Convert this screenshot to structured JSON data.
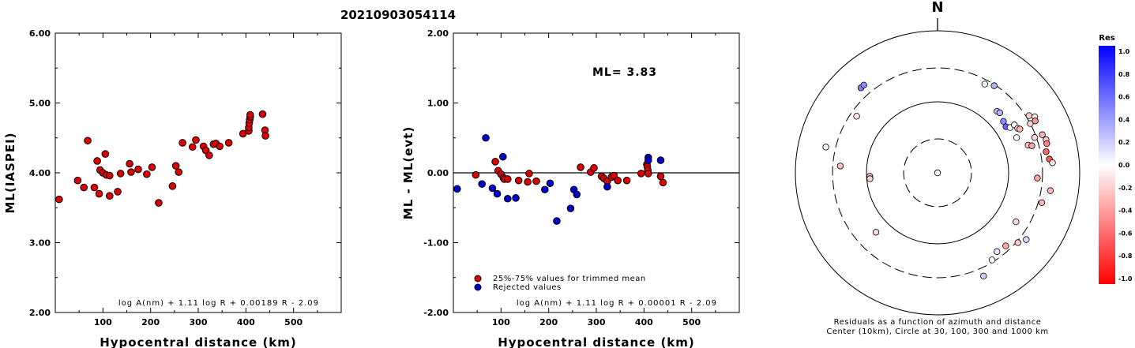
{
  "title": "20210903054114",
  "chart_data": [
    {
      "type": "scatter",
      "ylabel": "ML(IASPEI)",
      "xlabel": "Hypocentral distance (km)",
      "xlim": [
        0,
        600
      ],
      "ylim": [
        2.0,
        6.0
      ],
      "xticks": [
        "100",
        "200",
        "300",
        "400",
        "500"
      ],
      "yticks": [
        "2.00",
        "3.00",
        "4.00",
        "5.00",
        "6.00"
      ],
      "formula": "log A(nm) + 1.11 log R + 0.00189 R - 2.09",
      "points": [
        [
          8,
          3.62
        ],
        [
          47,
          3.89
        ],
        [
          60,
          3.79
        ],
        [
          68,
          4.46
        ],
        [
          82,
          3.79
        ],
        [
          88,
          4.17
        ],
        [
          92,
          3.7
        ],
        [
          94,
          4.04
        ],
        [
          100,
          4.0
        ],
        [
          105,
          4.27
        ],
        [
          107,
          3.97
        ],
        [
          114,
          3.67
        ],
        [
          114,
          3.96
        ],
        [
          131,
          3.73
        ],
        [
          137,
          3.99
        ],
        [
          156,
          4.13
        ],
        [
          159,
          4.01
        ],
        [
          174,
          4.05
        ],
        [
          192,
          3.98
        ],
        [
          203,
          4.08
        ],
        [
          217,
          3.57
        ],
        [
          246,
          3.81
        ],
        [
          253,
          4.1
        ],
        [
          259,
          4.01
        ],
        [
          267,
          4.43
        ],
        [
          288,
          4.37
        ],
        [
          295,
          4.47
        ],
        [
          311,
          4.38
        ],
        [
          316,
          4.32
        ],
        [
          323,
          4.25
        ],
        [
          332,
          4.41
        ],
        [
          337,
          4.42
        ],
        [
          345,
          4.38
        ],
        [
          364,
          4.43
        ],
        [
          394,
          4.56
        ],
        [
          406,
          4.6
        ],
        [
          406,
          4.65
        ],
        [
          407,
          4.71
        ],
        [
          408,
          4.76
        ],
        [
          409,
          4.8
        ],
        [
          409,
          4.83
        ],
        [
          435,
          4.84
        ],
        [
          440,
          4.61
        ],
        [
          441,
          4.53
        ]
      ]
    },
    {
      "type": "scatter",
      "ylabel": "ML - ML(evt)",
      "xlabel": "Hypocentral distance (km)",
      "xlim": [
        0,
        600
      ],
      "ylim": [
        -2.0,
        2.0
      ],
      "xticks": [
        "100",
        "200",
        "300",
        "400",
        "500"
      ],
      "yticks": [
        "-2.00",
        "-1.00",
        "0.00",
        "1.00",
        "2.00"
      ],
      "formula": "log A(nm) + 1.11 log R + 0.00001 R - 2.09",
      "ml_label": "ML= 3.83",
      "legend": [
        {
          "label": "25%-75% values for trimmed mean",
          "color": "#dd0000"
        },
        {
          "label": "Rejected values",
          "color": "#0000cc"
        }
      ],
      "series": [
        {
          "name": "25%-75% values for trimmed mean",
          "color": "#dd0000",
          "points": [
            [
              47,
              -0.03
            ],
            [
              88,
              0.16
            ],
            [
              94,
              0.03
            ],
            [
              100,
              -0.02
            ],
            [
              105,
              -0.07
            ],
            [
              107,
              -0.09
            ],
            [
              114,
              -0.09
            ],
            [
              137,
              -0.11
            ],
            [
              156,
              -0.13
            ],
            [
              159,
              -0.01
            ],
            [
              174,
              -0.12
            ],
            [
              267,
              0.08
            ],
            [
              288,
              0.01
            ],
            [
              295,
              0.07
            ],
            [
              311,
              -0.05
            ],
            [
              316,
              -0.08
            ],
            [
              323,
              -0.12
            ],
            [
              332,
              -0.06
            ],
            [
              337,
              -0.04
            ],
            [
              345,
              -0.11
            ],
            [
              364,
              -0.11
            ],
            [
              394,
              -0.01
            ],
            [
              406,
              0.12
            ],
            [
              407,
              0.09
            ],
            [
              408,
              0.04
            ],
            [
              409,
              -0.01
            ],
            [
              435,
              -0.05
            ],
            [
              440,
              -0.14
            ]
          ]
        },
        {
          "name": "Rejected values",
          "color": "#0000cc",
          "points": [
            [
              8,
              -0.23
            ],
            [
              60,
              -0.16
            ],
            [
              68,
              0.5
            ],
            [
              82,
              -0.22
            ],
            [
              92,
              -0.3
            ],
            [
              104,
              0.23
            ],
            [
              114,
              -0.37
            ],
            [
              131,
              -0.36
            ],
            [
              192,
              -0.24
            ],
            [
              203,
              -0.15
            ],
            [
              217,
              -0.69
            ],
            [
              246,
              -0.51
            ],
            [
              253,
              -0.24
            ],
            [
              259,
              -0.31
            ],
            [
              323,
              -0.2
            ],
            [
              409,
              0.22
            ],
            [
              409,
              0.18
            ],
            [
              435,
              0.18
            ]
          ]
        }
      ]
    },
    {
      "type": "scatter",
      "subtype": "polar",
      "north_label": "N",
      "caption_line1": "Residuals as a function of azimuth and distance",
      "caption_line2": "Center (10km), Circle at 30, 100, 300 and 1000 km",
      "colorbar": {
        "title": "Res",
        "ticks": [
          "1.0",
          "0.8",
          "0.6",
          "0.4",
          "0.2",
          "0.0",
          "-0.2",
          "-0.4",
          "-0.6",
          "-0.8",
          "-1.0"
        ],
        "max_color": "#0000ff",
        "mid_color": "#ffffff",
        "min_color": "#ff0000"
      },
      "rings_km": [
        30,
        100,
        300,
        1000
      ],
      "stations": [
        {
          "az": 185,
          "dist": 8,
          "res": -0.05
        },
        {
          "az": 318,
          "dist": 407,
          "res": 0.5
        },
        {
          "az": 320,
          "dist": 410,
          "res": 0.45
        },
        {
          "az": 305,
          "dist": 245,
          "res": -0.1
        },
        {
          "az": 283,
          "dist": 410,
          "res": -0.05
        },
        {
          "az": 267,
          "dist": 90,
          "res": -0.2
        },
        {
          "az": 265,
          "dist": 90,
          "res": -0.18
        },
        {
          "az": 274,
          "dist": 235,
          "res": -0.25
        },
        {
          "az": 28,
          "dist": 260,
          "res": 0.05
        },
        {
          "az": 33,
          "dist": 290,
          "res": 0.3
        },
        {
          "az": 44,
          "dist": 160,
          "res": 0.25
        },
        {
          "az": 46,
          "dist": 165,
          "res": 0.28
        },
        {
          "az": 52,
          "dist": 150,
          "res": 0.45
        },
        {
          "az": 56,
          "dist": 145,
          "res": 0.6
        },
        {
          "az": 58,
          "dist": 160,
          "res": 0.0
        },
        {
          "az": 58,
          "dist": 188,
          "res": -0.05
        },
        {
          "az": 61,
          "dist": 195,
          "res": -0.15
        },
        {
          "az": 62,
          "dist": 205,
          "res": -0.3
        },
        {
          "az": 66,
          "dist": 165,
          "res": 0.0
        },
        {
          "az": 73,
          "dist": 215,
          "res": -0.25
        },
        {
          "az": 74,
          "dist": 240,
          "res": -0.35
        },
        {
          "az": 70,
          "dist": 285,
          "res": -0.15
        },
        {
          "az": 62,
          "dist": 300,
          "res": -0.18
        },
        {
          "az": 58,
          "dist": 330,
          "res": -0.2
        },
        {
          "az": 60,
          "dist": 380,
          "res": -0.1
        },
        {
          "az": 62,
          "dist": 360,
          "res": -0.4
        },
        {
          "az": 70,
          "dist": 370,
          "res": -0.3
        },
        {
          "az": 73,
          "dist": 395,
          "res": -0.2
        },
        {
          "az": 75,
          "dist": 390,
          "res": -0.5
        },
        {
          "az": 79,
          "dist": 360,
          "res": -0.6
        },
        {
          "az": 83,
          "dist": 385,
          "res": -0.65
        },
        {
          "az": 85,
          "dist": 420,
          "res": -0.1
        },
        {
          "az": 93,
          "dist": 255,
          "res": -0.35
        },
        {
          "az": 99,
          "dist": 405,
          "res": -0.25
        },
        {
          "az": 106,
          "dist": 335,
          "res": -0.3
        },
        {
          "az": 122,
          "dist": 200,
          "res": -0.15
        },
        {
          "az": 127,
          "dist": 365,
          "res": 0.15
        },
        {
          "az": 131,
          "dist": 315,
          "res": -0.2
        },
        {
          "az": 137,
          "dist": 255,
          "res": -0.35
        },
        {
          "az": 143,
          "dist": 245,
          "res": 0.1
        },
        {
          "az": 148,
          "dist": 280,
          "res": 0.0
        },
        {
          "az": 156,
          "dist": 390,
          "res": 0.2
        },
        {
          "az": 226,
          "dist": 160,
          "res": -0.15
        }
      ]
    }
  ]
}
